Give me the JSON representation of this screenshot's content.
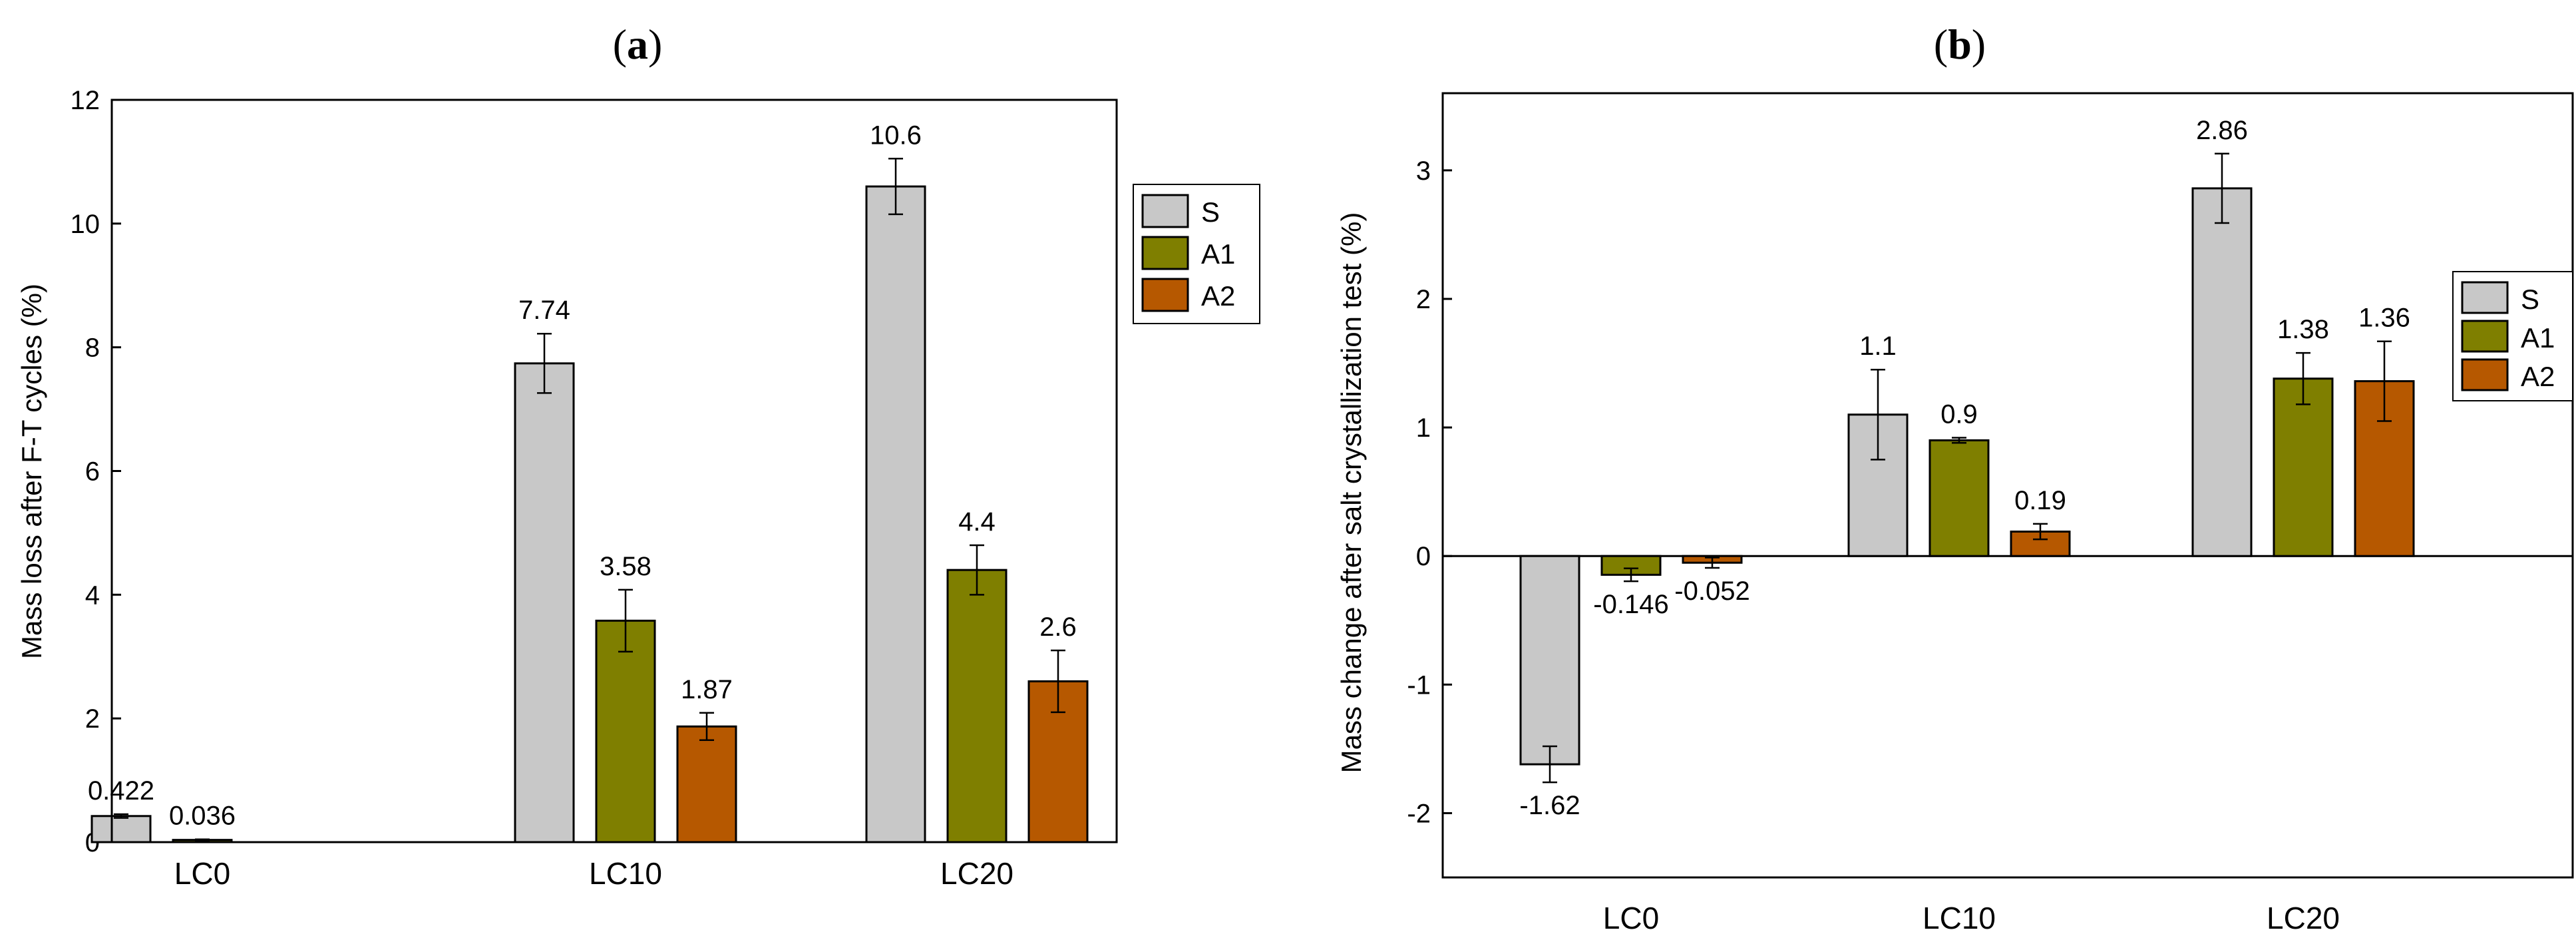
{
  "chart_data": [
    {
      "type": "bar",
      "panel": "a",
      "title": "",
      "xlabel": "",
      "ylabel": "Mass loss after F-T cycles (%)",
      "categories": [
        "LC0",
        "LC10",
        "LC20"
      ],
      "series": [
        {
          "name": "S",
          "values": [
            0.422,
            7.74,
            10.6
          ],
          "errors": [
            0.03,
            0.48,
            0.45
          ],
          "labels": [
            "0.422",
            "7.74",
            "10.6"
          ]
        },
        {
          "name": "A1",
          "values": [
            0.036,
            3.58,
            4.4
          ],
          "errors": [
            0.01,
            0.5,
            0.4
          ],
          "labels": [
            "0.036",
            "3.58",
            "4.4"
          ]
        },
        {
          "name": "A2",
          "values": [
            null,
            1.87,
            2.6
          ],
          "errors": [
            null,
            0.22,
            0.5
          ],
          "labels": [
            "",
            "1.87",
            "2.6"
          ]
        }
      ],
      "ylim": [
        0,
        12
      ],
      "yticks": [
        "0",
        "2",
        "4",
        "6",
        "8",
        "10",
        "12"
      ],
      "legend": "top-right",
      "grid": false
    },
    {
      "type": "bar",
      "panel": "b",
      "title": "",
      "xlabel": "",
      "ylabel": "Mass change after salt crystallization test (%)",
      "categories": [
        "LC0",
        "LC10",
        "LC20"
      ],
      "series": [
        {
          "name": "S",
          "values": [
            -1.62,
            1.1,
            2.86
          ],
          "errors": [
            0.14,
            0.35,
            0.27
          ],
          "labels": [
            "-1.62",
            "1.1",
            "2.86"
          ]
        },
        {
          "name": "A1",
          "values": [
            -0.146,
            0.9,
            1.38
          ],
          "errors": [
            0.05,
            0.02,
            0.2
          ],
          "labels": [
            "-0.146",
            "0.9",
            "1.38"
          ]
        },
        {
          "name": "A2",
          "values": [
            -0.052,
            0.19,
            1.36
          ],
          "errors": [
            0.04,
            0.06,
            0.31
          ],
          "labels": [
            "-0.052",
            "0.19",
            "1.36"
          ]
        }
      ],
      "ylim": [
        -2.5,
        3.6
      ],
      "yticks": [
        "-2",
        "-1",
        "0",
        "1",
        "2",
        "3"
      ],
      "legend": "top-right",
      "grid": false
    }
  ],
  "panels": [
    {
      "label_open": "(",
      "label_letter": "a",
      "label_close": ")"
    },
    {
      "label_open": "(",
      "label_letter": "b",
      "label_close": ")"
    }
  ],
  "colors": {
    "S": "#c8c8c8",
    "A1": "#7f7f00",
    "A2": "#b65800",
    "stroke": "#000000"
  }
}
